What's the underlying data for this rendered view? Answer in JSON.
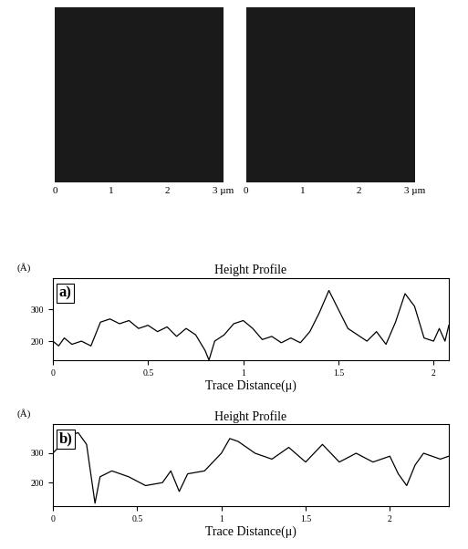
{
  "chart_data": [
    {
      "type": "image",
      "xlim": [
        0,
        3
      ],
      "xticks": [
        0,
        1,
        2,
        {
          "value": 3,
          "label": "3 µm"
        }
      ],
      "tick_labels": "x",
      "color": "#1a1a1a"
    },
    {
      "type": "image",
      "xlim": [
        0,
        3
      ],
      "xticks": [
        0,
        1,
        2,
        {
          "value": 3,
          "label": "3 µm"
        }
      ],
      "tick_labels": "x",
      "color": "#1a1a1a"
    },
    {
      "type": "line",
      "title": "Height Profile",
      "label": "a)",
      "ylabel": "(Å)",
      "xlabel": "Trace Distance(μ)",
      "color": "#000000",
      "x": [
        0,
        0.03,
        0.06,
        0.1,
        0.15,
        0.2,
        0.25,
        0.3,
        0.35,
        0.4,
        0.45,
        0.5,
        0.55,
        0.6,
        0.65,
        0.7,
        0.75,
        0.8,
        0.82,
        0.85,
        0.9,
        0.95,
        1.0,
        1.05,
        1.1,
        1.15,
        1.2,
        1.25,
        1.3,
        1.35,
        1.4,
        1.45,
        1.5,
        1.55,
        1.6,
        1.65,
        1.7,
        1.75,
        1.8,
        1.85,
        1.9,
        1.95,
        2.0,
        2.03,
        2.06,
        2.08
      ],
      "values": [
        200,
        185,
        210,
        190,
        200,
        185,
        260,
        270,
        255,
        265,
        240,
        250,
        230,
        245,
        215,
        240,
        220,
        170,
        140,
        200,
        220,
        255,
        265,
        240,
        205,
        215,
        195,
        210,
        195,
        230,
        290,
        360,
        300,
        240,
        220,
        200,
        230,
        190,
        260,
        350,
        310,
        210,
        200,
        240,
        200,
        250
      ],
      "xlim": [
        0,
        2.08
      ],
      "ylim": [
        140,
        400
      ],
      "xticks": [
        0,
        0.5,
        1,
        1.5,
        2
      ],
      "yticks": [
        200,
        300
      ]
    },
    {
      "type": "line",
      "title": "Height Profile",
      "label": "b)",
      "ylabel": "(Å)",
      "xlabel": "Trace Distance(μ)",
      "color": "#000000",
      "x": [
        0,
        0.05,
        0.1,
        0.15,
        0.2,
        0.25,
        0.28,
        0.35,
        0.45,
        0.55,
        0.65,
        0.7,
        0.75,
        0.8,
        0.9,
        1.0,
        1.05,
        1.1,
        1.2,
        1.3,
        1.4,
        1.5,
        1.6,
        1.7,
        1.8,
        1.9,
        2.0,
        2.05,
        2.1,
        2.15,
        2.2,
        2.3,
        2.35
      ],
      "values": [
        300,
        330,
        360,
        370,
        330,
        130,
        220,
        240,
        220,
        190,
        200,
        240,
        170,
        230,
        240,
        300,
        350,
        340,
        300,
        280,
        320,
        270,
        330,
        270,
        300,
        270,
        290,
        230,
        190,
        260,
        300,
        280,
        290
      ],
      "xlim": [
        0,
        2.35
      ],
      "ylim": [
        120,
        400
      ],
      "xticks": [
        0,
        0.5,
        1,
        1.5,
        2
      ],
      "yticks": [
        200,
        300
      ]
    }
  ]
}
